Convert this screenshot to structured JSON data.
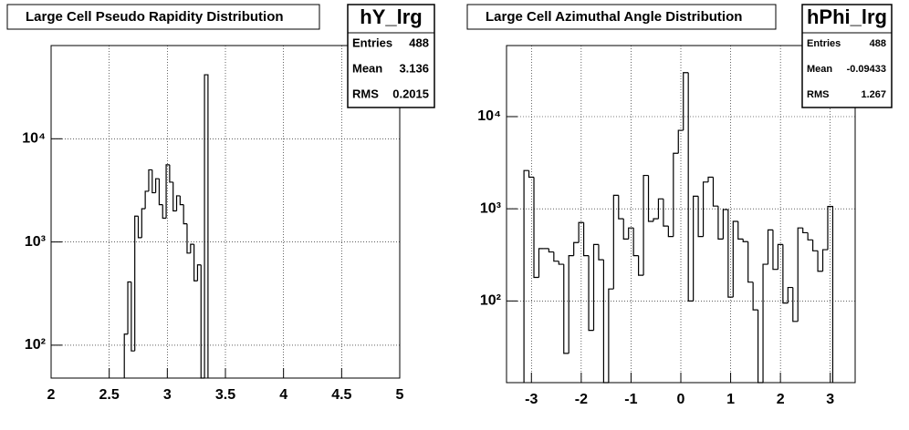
{
  "chart_data": [
    {
      "type": "histogram",
      "title": "Large Cell Pseudo Rapidity Distribution",
      "color": "#000000",
      "log_y": true,
      "grid": true,
      "stats": {
        "title": "hY_lrg",
        "rows": [
          {
            "label": "Entries",
            "value": 488
          },
          {
            "label": "Mean",
            "value": 3.136
          },
          {
            "label": "RMS",
            "value": 0.2015
          }
        ]
      },
      "bins": [
        2.63,
        2.66,
        2.69,
        2.72,
        2.75,
        2.78,
        2.81,
        2.84,
        2.87,
        2.9,
        2.93,
        2.96,
        2.99,
        3.02,
        3.05,
        3.08,
        3.11,
        3.14,
        3.17,
        3.2,
        3.23,
        3.26,
        3.29,
        3.32,
        3.35
      ],
      "values": [
        128,
        410,
        88,
        1780,
        1100,
        2100,
        3100,
        5000,
        3000,
        4100,
        2300,
        1700,
        5600,
        3800,
        2000,
        2800,
        2300,
        1500,
        780,
        950,
        420,
        600,
        0,
        41700
      ],
      "xlim": [
        2,
        5
      ],
      "xticks": [
        2,
        2.5,
        3,
        3.5,
        4,
        4.5,
        5
      ],
      "ylim": [
        48,
        80000
      ],
      "yticks": [
        {
          "value": 100,
          "label": "10²"
        },
        {
          "value": 1000,
          "label": "10³"
        },
        {
          "value": 10000,
          "label": "10⁴"
        }
      ]
    },
    {
      "type": "histogram",
      "title": "Large Cell Azimuthal Angle Distribution",
      "color": "#000000",
      "log_y": true,
      "grid": true,
      "stats": {
        "title": "hPhi_lrg",
        "rows": [
          {
            "label": "Entries",
            "value": 488
          },
          {
            "label": "Mean",
            "value": -0.09433
          },
          {
            "label": "RMS",
            "value": 1.267
          }
        ]
      },
      "bins": [
        -3.15,
        -3.05,
        -2.95,
        -2.85,
        -2.75,
        -2.65,
        -2.55,
        -2.45,
        -2.35,
        -2.25,
        -2.15,
        -2.05,
        -1.95,
        -1.85,
        -1.75,
        -1.65,
        -1.55,
        -1.45,
        -1.35,
        -1.25,
        -1.15,
        -1.05,
        -0.95,
        -0.85,
        -0.75,
        -0.65,
        -0.55,
        -0.45,
        -0.35,
        -0.25,
        -0.15,
        -0.05,
        0.05,
        0.15,
        0.25,
        0.35,
        0.45,
        0.55,
        0.65,
        0.75,
        0.85,
        0.95,
        1.05,
        1.15,
        1.25,
        1.35,
        1.45,
        1.55,
        1.65,
        1.75,
        1.85,
        1.95,
        2.05,
        2.15,
        2.25,
        2.35,
        2.45,
        2.55,
        2.65,
        2.75,
        2.85,
        2.95,
        3.05
      ],
      "values": [
        2600,
        2200,
        180,
        370,
        370,
        340,
        270,
        250,
        27,
        310,
        430,
        710,
        310,
        48,
        410,
        280,
        0,
        135,
        1400,
        780,
        470,
        620,
        310,
        190,
        2300,
        730,
        780,
        1280,
        650,
        500,
        4000,
        7100,
        30000,
        100,
        1370,
        500,
        1950,
        2200,
        1070,
        470,
        980,
        110,
        730,
        470,
        440,
        160,
        80,
        0,
        250,
        590,
        220,
        410,
        95,
        140,
        60,
        620,
        550,
        460,
        350,
        210,
        360,
        1060
      ],
      "xlim": [
        -3.5,
        3.5
      ],
      "xticks": [
        -3,
        -2,
        -1,
        0,
        1,
        2,
        3
      ],
      "ylim": [
        13,
        59000
      ],
      "yticks": [
        {
          "value": 100,
          "label": "10²"
        },
        {
          "value": 1000,
          "label": "10³"
        },
        {
          "value": 10000,
          "label": "10⁴"
        }
      ]
    }
  ]
}
